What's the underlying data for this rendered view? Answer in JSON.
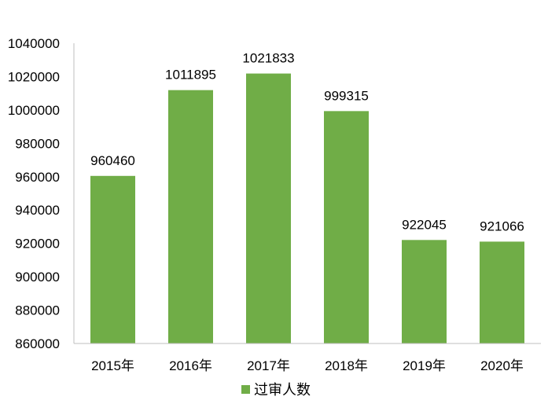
{
  "chart_data": {
    "type": "bar",
    "categories": [
      "2015年",
      "2016年",
      "2017年",
      "2018年",
      "2019年",
      "2020年"
    ],
    "series": [
      {
        "name": "过审人数",
        "values": [
          960460,
          1011895,
          1021833,
          999315,
          922045,
          921066
        ],
        "color": "#70ad47"
      }
    ],
    "ylim": [
      860000,
      1040000
    ],
    "yticks": [
      860000,
      880000,
      900000,
      920000,
      940000,
      960000,
      980000,
      1000000,
      1020000,
      1040000
    ],
    "data_labels": [
      "960460",
      "1011895",
      "1021833",
      "999315",
      "922045",
      "921066"
    ],
    "grid": false,
    "legend_position": "bottom"
  }
}
